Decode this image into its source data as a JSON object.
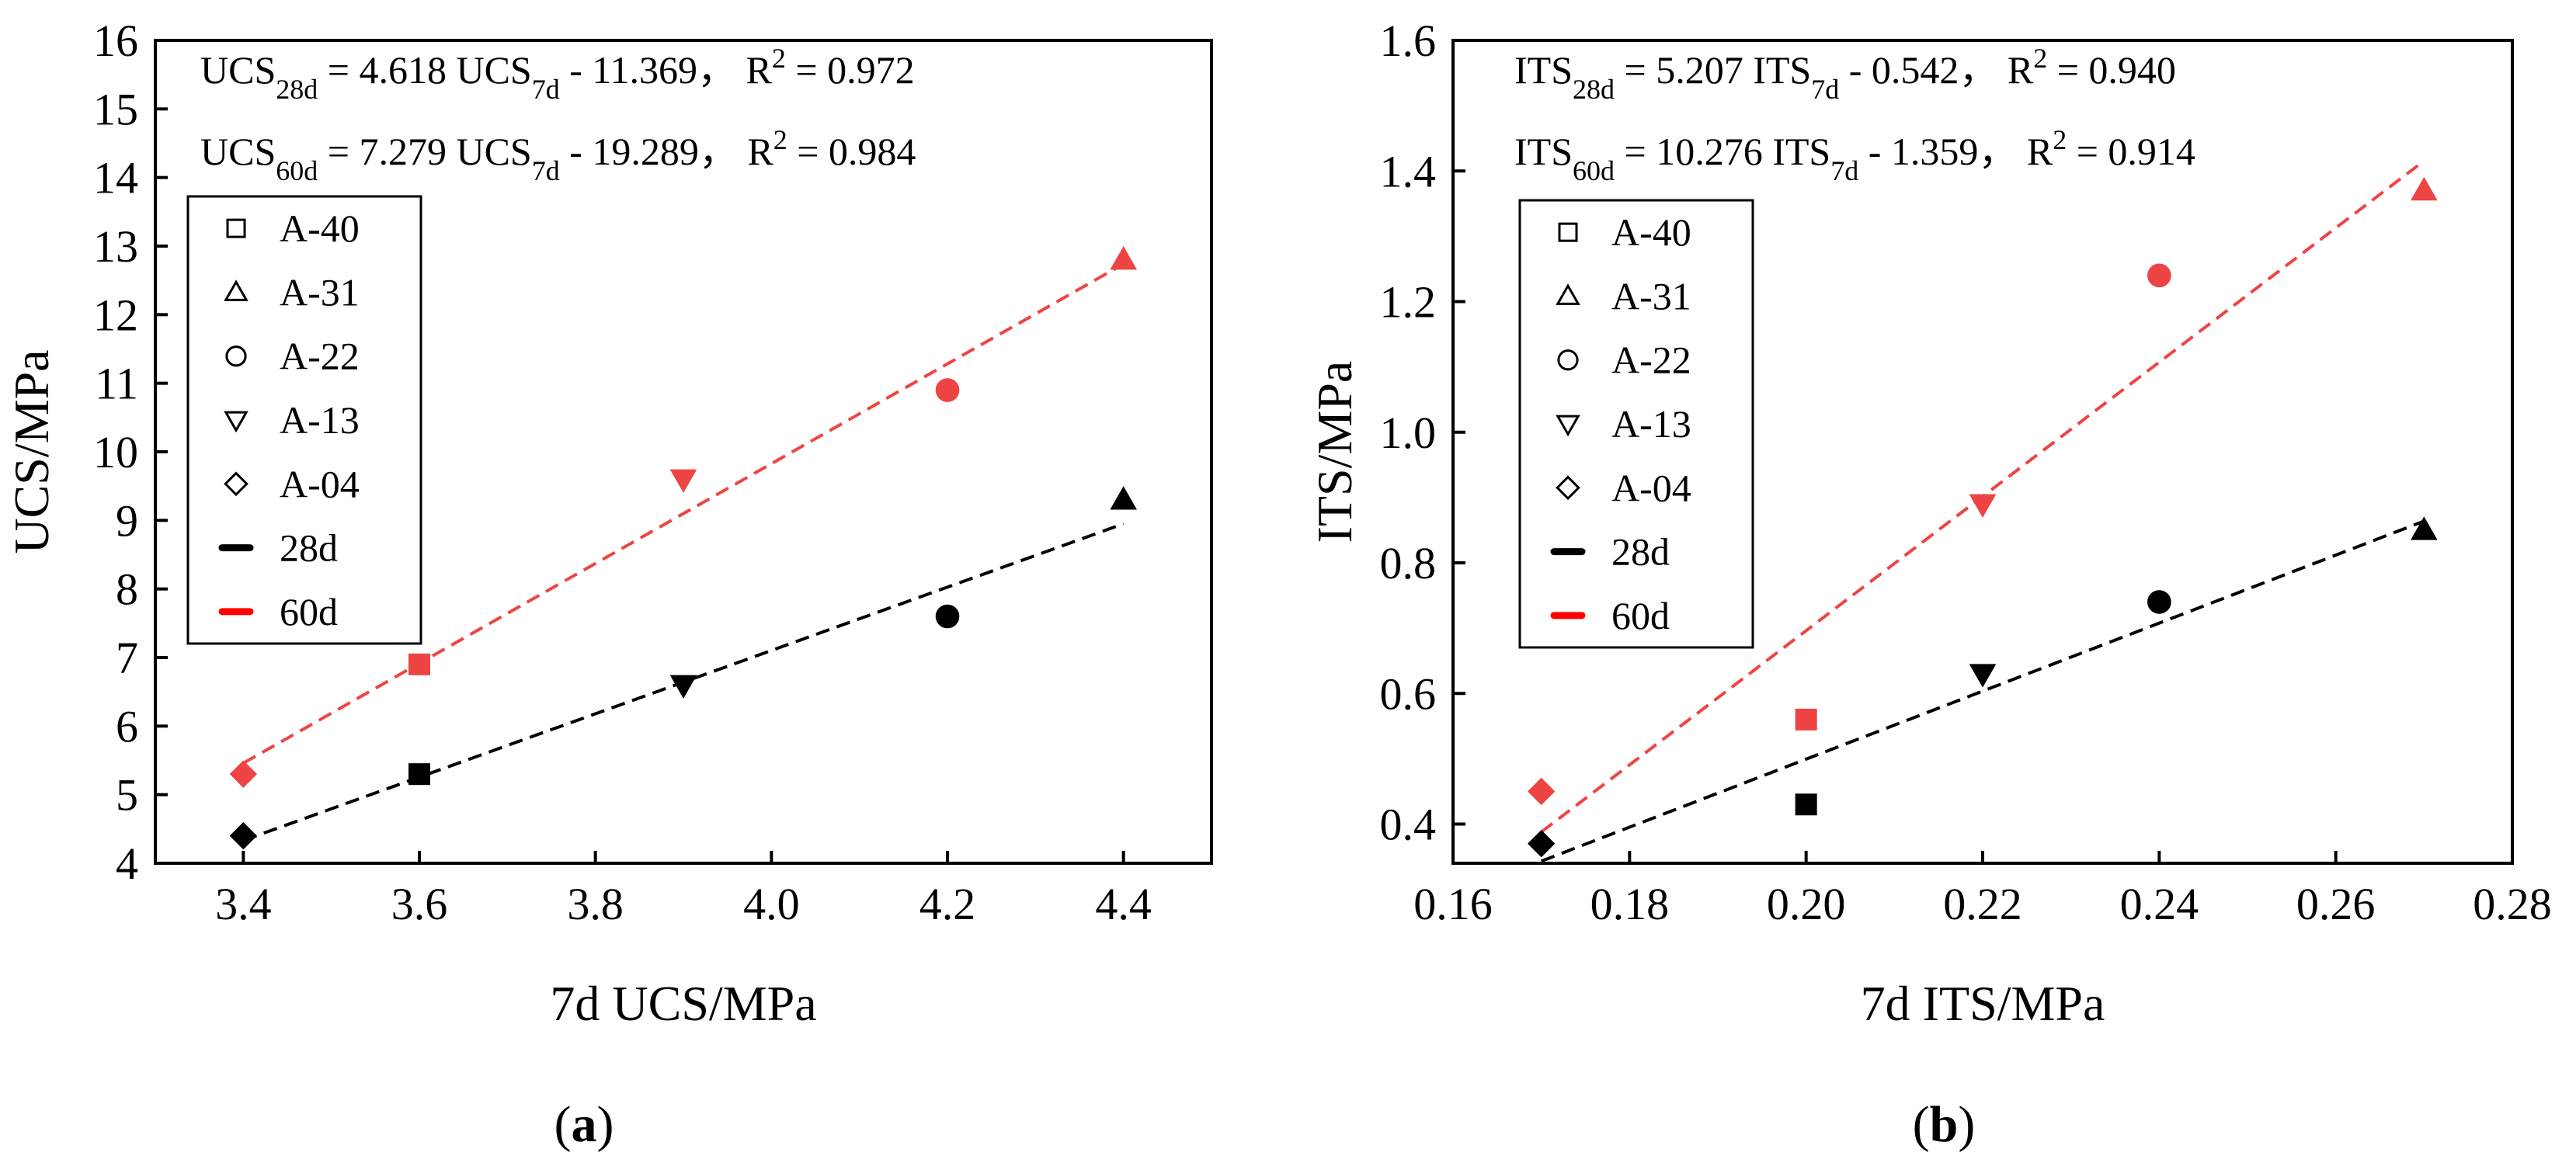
{
  "chart_data": [
    {
      "type": "scatter",
      "panel_label": "(a)",
      "xlabel": "7d UCS/MPa",
      "ylabel": "UCS/MPa",
      "xlim": [
        3.3,
        4.5
      ],
      "ylim": [
        4,
        16
      ],
      "xticks": [
        3.4,
        3.6,
        3.8,
        4.0,
        4.2,
        4.4
      ],
      "xtick_labels": [
        "3.4",
        "3.6",
        "3.8",
        "4.0",
        "4.2",
        "4.4"
      ],
      "yticks": [
        4,
        5,
        6,
        7,
        8,
        9,
        10,
        11,
        12,
        13,
        14,
        15,
        16
      ],
      "ytick_labels": [
        "4",
        "5",
        "6",
        "7",
        "8",
        "9",
        "10",
        "11",
        "12",
        "13",
        "14",
        "15",
        "16"
      ],
      "equations": [
        {
          "prefix": "UCS",
          "sub1": "28d",
          "mid": " = 4.618 UCS",
          "sub2": "7d",
          "post": " - 11.369， R",
          "sup": "2",
          "tail": " = 0.972"
        },
        {
          "prefix": "UCS",
          "sub1": "60d",
          "mid": " = 7.279 UCS",
          "sub2": "7d",
          "post": " - 19.289， R",
          "sup": "2",
          "tail": " = 0.984"
        }
      ],
      "legend": [
        {
          "label": "A-40",
          "marker": "square"
        },
        {
          "label": "A-31",
          "marker": "triangle-up"
        },
        {
          "label": "A-22",
          "marker": "circle"
        },
        {
          "label": "A-13",
          "marker": "triangle-down"
        },
        {
          "label": "A-04",
          "marker": "diamond"
        },
        {
          "label": "28d",
          "marker": "line",
          "color": "#000000"
        },
        {
          "label": "60d",
          "marker": "line",
          "color": "#ff0000"
        }
      ],
      "legend_placement": "upper-left",
      "series": [
        {
          "name": "28d",
          "color": "#000000",
          "points": [
            {
              "sample": "A-04",
              "marker": "diamond",
              "x": 3.4,
              "y": 4.4
            },
            {
              "sample": "A-40",
              "marker": "square",
              "x": 3.6,
              "y": 5.3
            },
            {
              "sample": "A-13",
              "marker": "triangle-down",
              "x": 3.9,
              "y": 6.6
            },
            {
              "sample": "A-22",
              "marker": "circle",
              "x": 4.2,
              "y": 7.6
            },
            {
              "sample": "A-31",
              "marker": "triangle-up",
              "x": 4.4,
              "y": 9.3
            }
          ],
          "fit": {
            "slope": 4.618,
            "intercept": -11.369,
            "x_range": [
              3.4,
              4.4
            ]
          }
        },
        {
          "name": "60d",
          "color": "#ee4444",
          "points": [
            {
              "sample": "A-04",
              "marker": "diamond",
              "x": 3.4,
              "y": 5.3
            },
            {
              "sample": "A-40",
              "marker": "square",
              "x": 3.6,
              "y": 6.9
            },
            {
              "sample": "A-13",
              "marker": "triangle-down",
              "x": 3.9,
              "y": 9.6
            },
            {
              "sample": "A-22",
              "marker": "circle",
              "x": 4.2,
              "y": 10.9
            },
            {
              "sample": "A-31",
              "marker": "triangle-up",
              "x": 4.4,
              "y": 12.8
            }
          ],
          "fit": {
            "slope": 7.279,
            "intercept": -19.289,
            "x_range": [
              3.4,
              4.4
            ]
          }
        }
      ]
    },
    {
      "type": "scatter",
      "panel_label": "(b)",
      "xlabel": "7d ITS/MPa",
      "ylabel": "ITS/MPa",
      "xlim": [
        0.16,
        0.28
      ],
      "ylim": [
        0.34,
        1.6
      ],
      "xticks": [
        0.16,
        0.18,
        0.2,
        0.22,
        0.24,
        0.26,
        0.28
      ],
      "xtick_labels": [
        "0.16",
        "0.18",
        "0.20",
        "0.22",
        "0.24",
        "0.26",
        "0.28"
      ],
      "yticks": [
        0.4,
        0.6,
        0.8,
        1.0,
        1.2,
        1.4,
        1.6
      ],
      "ytick_labels": [
        "0.4",
        "0.6",
        "0.8",
        "1.0",
        "1.2",
        "1.4",
        "1.6"
      ],
      "equations": [
        {
          "prefix": "ITS",
          "sub1": "28d",
          "mid": " = 5.207 ITS",
          "sub2": "7d",
          "post": " - 0.542， R",
          "sup": "2",
          "tail": " = 0.940"
        },
        {
          "prefix": "ITS",
          "sub1": "60d",
          "mid": " = 10.276 ITS",
          "sub2": "7d",
          "post": " - 1.359， R",
          "sup": "2",
          "tail": " = 0.914"
        }
      ],
      "legend": [
        {
          "label": "A-40",
          "marker": "square"
        },
        {
          "label": "A-31",
          "marker": "triangle-up"
        },
        {
          "label": "A-22",
          "marker": "circle"
        },
        {
          "label": "A-13",
          "marker": "triangle-down"
        },
        {
          "label": "A-04",
          "marker": "diamond"
        },
        {
          "label": "28d",
          "marker": "line",
          "color": "#000000"
        },
        {
          "label": "60d",
          "marker": "line",
          "color": "#ff0000"
        }
      ],
      "legend_placement": "upper-left",
      "series": [
        {
          "name": "28d",
          "color": "#000000",
          "points": [
            {
              "sample": "A-04",
              "marker": "diamond",
              "x": 0.17,
              "y": 0.37
            },
            {
              "sample": "A-40",
              "marker": "square",
              "x": 0.2,
              "y": 0.43
            },
            {
              "sample": "A-13",
              "marker": "triangle-down",
              "x": 0.22,
              "y": 0.63
            },
            {
              "sample": "A-22",
              "marker": "circle",
              "x": 0.24,
              "y": 0.74
            },
            {
              "sample": "A-31",
              "marker": "triangle-up",
              "x": 0.27,
              "y": 0.85
            }
          ],
          "fit": {
            "slope": 5.207,
            "intercept": -0.542,
            "x_range": [
              0.17,
              0.27
            ]
          }
        },
        {
          "name": "60d",
          "color": "#ee4444",
          "points": [
            {
              "sample": "A-04",
              "marker": "diamond",
              "x": 0.17,
              "y": 0.45
            },
            {
              "sample": "A-40",
              "marker": "square",
              "x": 0.2,
              "y": 0.56
            },
            {
              "sample": "A-13",
              "marker": "triangle-down",
              "x": 0.22,
              "y": 0.89
            },
            {
              "sample": "A-22",
              "marker": "circle",
              "x": 0.24,
              "y": 1.24
            },
            {
              "sample": "A-31",
              "marker": "triangle-up",
              "x": 0.27,
              "y": 1.37
            }
          ],
          "fit": {
            "slope": 10.276,
            "intercept": -1.359,
            "x_range": [
              0.17,
              0.27
            ]
          }
        }
      ]
    }
  ]
}
